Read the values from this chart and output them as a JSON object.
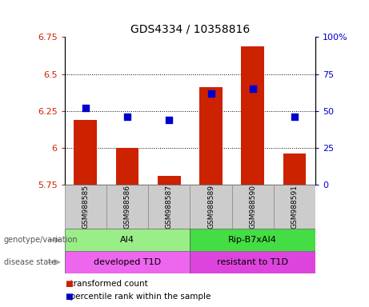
{
  "title": "GDS4334 / 10358816",
  "samples": [
    "GSM988585",
    "GSM988586",
    "GSM988587",
    "GSM988589",
    "GSM988590",
    "GSM988591"
  ],
  "transformed_count": [
    6.19,
    6.0,
    5.81,
    6.41,
    6.69,
    5.96
  ],
  "percentile_rank": [
    52,
    46,
    44,
    62,
    65,
    46
  ],
  "bar_bottom": 5.75,
  "ylim_left": [
    5.75,
    6.75
  ],
  "ylim_right": [
    0,
    100
  ],
  "yticks_left": [
    5.75,
    6.0,
    6.25,
    6.5,
    6.75
  ],
  "ytick_labels_left": [
    "5.75",
    "6",
    "6.25",
    "6.5",
    "6.75"
  ],
  "yticks_right": [
    0,
    25,
    50,
    75,
    100
  ],
  "ytick_labels_right": [
    "0",
    "25",
    "50",
    "75",
    "100%"
  ],
  "grid_lines": [
    6.0,
    6.25,
    6.5
  ],
  "bar_color": "#cc2200",
  "dot_color": "#0000cc",
  "dot_size": 28,
  "genotype_groups": [
    {
      "label": "AI4",
      "start": 0,
      "end": 3,
      "color": "#99ee88"
    },
    {
      "label": "Rip-B7xAI4",
      "start": 3,
      "end": 6,
      "color": "#44dd44"
    }
  ],
  "disease_groups": [
    {
      "label": "developed T1D",
      "start": 0,
      "end": 3,
      "color": "#ee66ee"
    },
    {
      "label": "resistant to T1D",
      "start": 3,
      "end": 6,
      "color": "#dd44dd"
    }
  ],
  "row_labels": [
    "genotype/variation",
    "disease state"
  ],
  "legend_items": [
    {
      "label": "transformed count",
      "color": "#cc2200"
    },
    {
      "label": "percentile rank within the sample",
      "color": "#0000cc"
    }
  ],
  "left_label_color": "#cc2200",
  "right_label_color": "#0000cc",
  "bar_width": 0.55,
  "arrow_color": "#aaaaaa",
  "sample_box_color": "#cccccc",
  "fig_bg": "#ffffff"
}
